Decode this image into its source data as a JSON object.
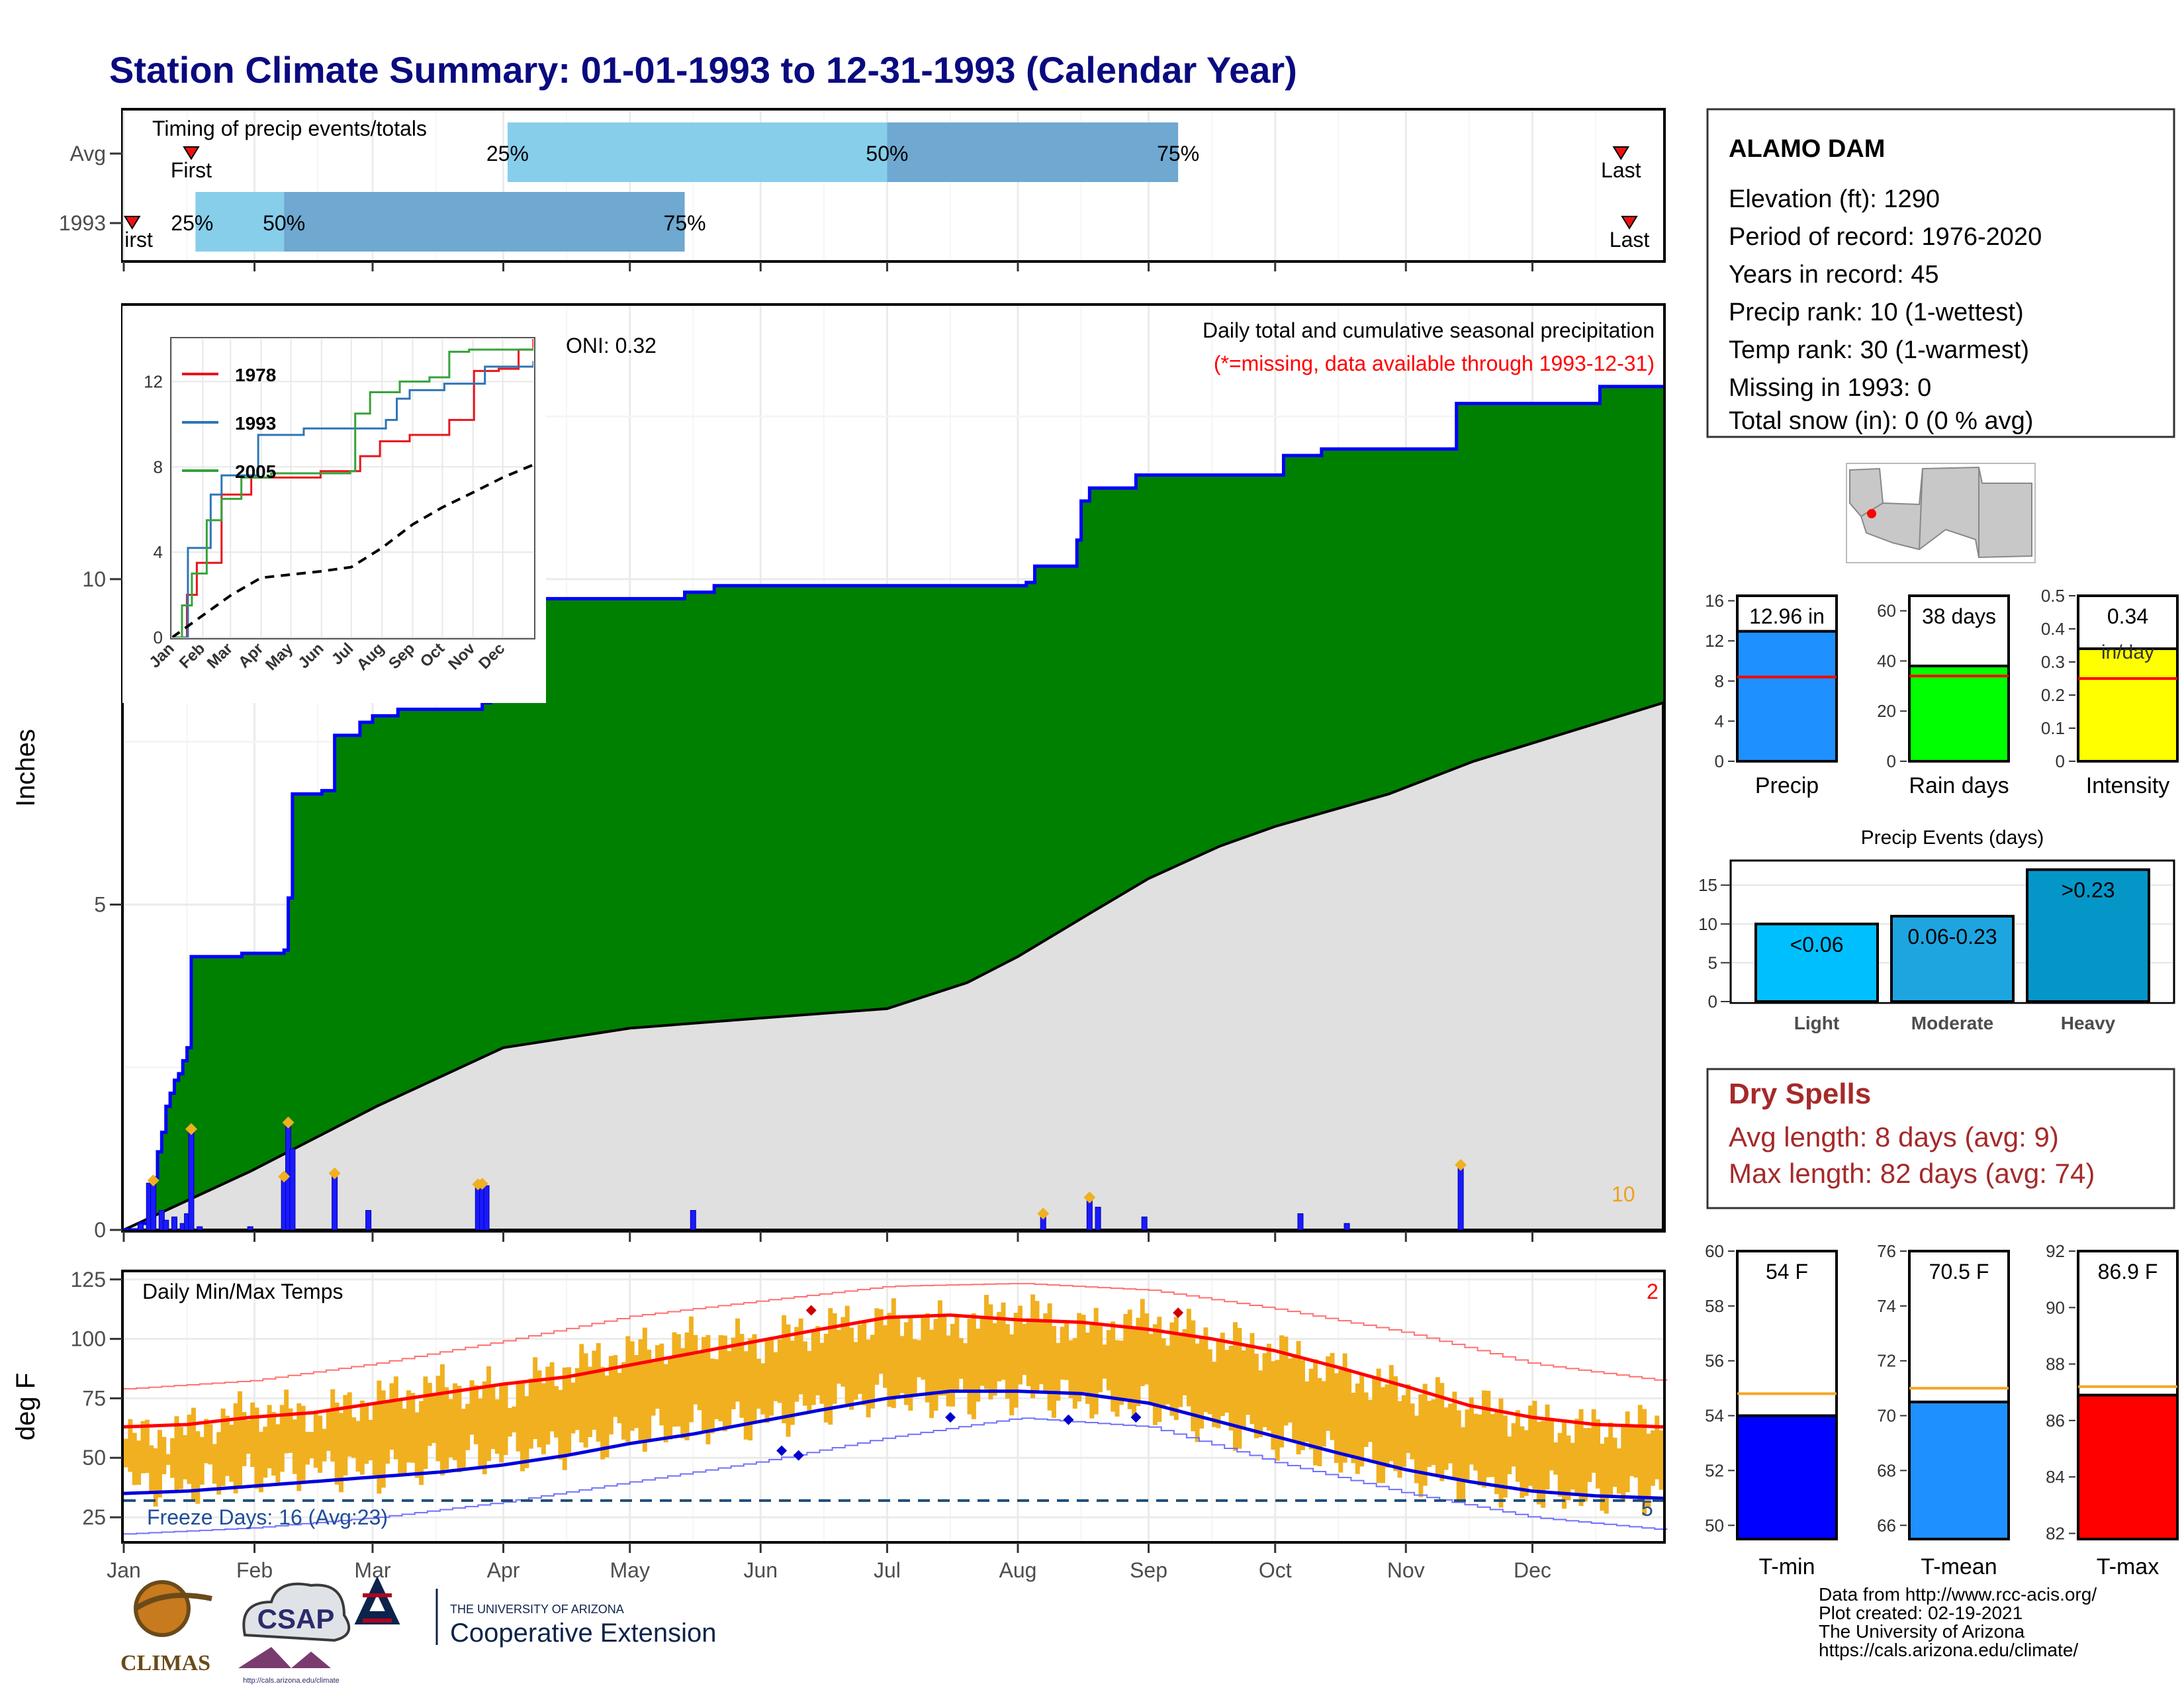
{
  "title": "Station Climate Summary: 01-01-1993 to 12-31-1993 (Calendar Year)",
  "colors": {
    "title": "#0a0a80",
    "green": "#008000",
    "gray_fill": "#e0e0e0",
    "blue_line": "#0000ff",
    "orange": "#f0b020",
    "red": "#ff0000",
    "dry_red": "#a52a2a",
    "light_blue": "#87ceeb",
    "mid_blue": "#6fa8d0"
  },
  "timing": {
    "title": "Timing of precip events/totals",
    "rows": [
      "Avg",
      "1993"
    ],
    "avg_bar": {
      "q25_day": 91,
      "q50_day": 181,
      "q75_day": 250
    },
    "avg_labels": {
      "q25": "25%",
      "q50": "50%",
      "q75": "75%"
    },
    "avg_markers": {
      "first_day": 16,
      "last_day": 355,
      "first": "First",
      "last": "Last"
    },
    "y1993_bar": {
      "q25_day": 17,
      "q50_day": 38,
      "q75_day": 133
    },
    "y1993_labels": {
      "q25": "25%",
      "q50": "50%",
      "q75": "75%"
    },
    "y1993_markers": {
      "first_day": 2,
      "last_day": 357,
      "first": "First",
      "last": "Last"
    }
  },
  "station": {
    "name": "ALAMO DAM",
    "lines": [
      "Elevation (ft): 1290",
      "Period of record: 1976-2020",
      "Years in record: 45",
      "Precip rank: 10 (1-wettest)",
      "Temp rank: 30 (1-warmest)",
      "Missing in 1993: 0",
      "Total snow (in): 0 (0 % avg)"
    ]
  },
  "precip_panel": {
    "ylabel": "Inches",
    "oni": "ONI: 0.32",
    "title_line1": "Daily total and cumulative seasonal precipitation",
    "title_line2": "(*=missing, data available through 1993-12-31)",
    "rank_label": "10",
    "ylim": [
      0,
      14.2
    ],
    "yticks": [
      0,
      5,
      10
    ],
    "months": [
      "Jan",
      "Feb",
      "Mar",
      "Apr",
      "May",
      "Jun",
      "Jul",
      "Aug",
      "Sep",
      "Oct",
      "Nov",
      "Dec"
    ],
    "cum_1993_steps": [
      [
        0,
        0
      ],
      [
        4,
        0.1
      ],
      [
        6,
        0.5
      ],
      [
        7,
        0.8
      ],
      [
        8,
        1.2
      ],
      [
        9,
        1.5
      ],
      [
        10,
        1.9
      ],
      [
        11,
        2.1
      ],
      [
        12,
        2.3
      ],
      [
        13,
        2.4
      ],
      [
        14,
        2.6
      ],
      [
        15,
        2.8
      ],
      [
        16,
        4.2
      ],
      [
        28,
        4.25
      ],
      [
        38,
        4.3
      ],
      [
        39,
        5.1
      ],
      [
        40,
        6.7
      ],
      [
        47,
        6.75
      ],
      [
        50,
        7.6
      ],
      [
        56,
        7.8
      ],
      [
        59,
        7.9
      ],
      [
        65,
        8.0
      ],
      [
        85,
        8.1
      ],
      [
        87,
        9.5
      ],
      [
        89,
        9.7
      ],
      [
        133,
        9.8
      ],
      [
        140,
        9.9
      ],
      [
        214,
        9.95
      ],
      [
        216,
        10.2
      ],
      [
        226,
        10.6
      ],
      [
        227,
        11.2
      ],
      [
        229,
        11.4
      ],
      [
        240,
        11.6
      ],
      [
        270,
        11.6
      ],
      [
        275,
        11.9
      ],
      [
        284,
        12.0
      ],
      [
        316,
        12.7
      ],
      [
        350,
        12.96
      ],
      [
        365,
        12.96
      ]
    ],
    "avg_cum": [
      [
        0,
        0
      ],
      [
        30,
        0.9
      ],
      [
        60,
        1.9
      ],
      [
        90,
        2.8
      ],
      [
        120,
        3.1
      ],
      [
        150,
        3.25
      ],
      [
        181,
        3.4
      ],
      [
        200,
        3.8
      ],
      [
        212,
        4.2
      ],
      [
        230,
        4.9
      ],
      [
        243,
        5.4
      ],
      [
        260,
        5.9
      ],
      [
        273,
        6.2
      ],
      [
        300,
        6.7
      ],
      [
        320,
        7.2
      ],
      [
        340,
        7.6
      ],
      [
        365,
        8.1
      ]
    ],
    "daily": [
      [
        4,
        0.1
      ],
      [
        6,
        0.72
      ],
      [
        7,
        0.8
      ],
      [
        9,
        0.3
      ],
      [
        10,
        0.15
      ],
      [
        12,
        0.2
      ],
      [
        14,
        0.1
      ],
      [
        15,
        0.25
      ],
      [
        16,
        1.55
      ],
      [
        18,
        0.05
      ],
      [
        30,
        0.05
      ],
      [
        38,
        0.82
      ],
      [
        39,
        1.65
      ],
      [
        40,
        1.25
      ],
      [
        50,
        0.87
      ],
      [
        58,
        0.3
      ],
      [
        84,
        0.7
      ],
      [
        85,
        0.71
      ],
      [
        86,
        0.68
      ],
      [
        135,
        0.3
      ],
      [
        218,
        0.25
      ],
      [
        229,
        0.5
      ],
      [
        231,
        0.35
      ],
      [
        242,
        0.2
      ],
      [
        279,
        0.25
      ],
      [
        290,
        0.1
      ],
      [
        317,
        1.0
      ]
    ],
    "orange_markers": [
      [
        7,
        0.76
      ],
      [
        16,
        1.55
      ],
      [
        38,
        0.82
      ],
      [
        39,
        1.65
      ],
      [
        50,
        0.87
      ],
      [
        84,
        0.7
      ],
      [
        85,
        0.71
      ],
      [
        218,
        0.25
      ],
      [
        229,
        0.5
      ],
      [
        317,
        1.0
      ]
    ]
  },
  "inset": {
    "ylim": [
      0,
      14
    ],
    "yticks": [
      0,
      4,
      8,
      12
    ],
    "legend": [
      "1978",
      "1993",
      "2005"
    ],
    "series": [
      {
        "name": "1978",
        "color": "#e8151b",
        "points": [
          [
            0,
            0
          ],
          [
            15,
            2
          ],
          [
            25,
            3.5
          ],
          [
            50,
            6.7
          ],
          [
            80,
            7.5
          ],
          [
            150,
            7.8
          ],
          [
            190,
            8.5
          ],
          [
            210,
            9.2
          ],
          [
            240,
            9.5
          ],
          [
            280,
            10.2
          ],
          [
            305,
            12.5
          ],
          [
            330,
            12.6
          ],
          [
            350,
            13.5
          ],
          [
            365,
            15.5
          ]
        ]
      },
      {
        "name": "1993",
        "color": "#2e75b6",
        "points": [
          [
            0,
            0
          ],
          [
            16,
            4.2
          ],
          [
            39,
            6.7
          ],
          [
            50,
            7.6
          ],
          [
            87,
            9.5
          ],
          [
            133,
            9.8
          ],
          [
            216,
            10.2
          ],
          [
            227,
            11.2
          ],
          [
            240,
            11.6
          ],
          [
            275,
            11.9
          ],
          [
            316,
            12.7
          ],
          [
            365,
            12.96
          ]
        ]
      },
      {
        "name": "2005",
        "color": "#35a33a",
        "points": [
          [
            0,
            0
          ],
          [
            10,
            1.5
          ],
          [
            20,
            3
          ],
          [
            35,
            5.5
          ],
          [
            50,
            6.5
          ],
          [
            70,
            7.5
          ],
          [
            100,
            7.7
          ],
          [
            180,
            7.8
          ],
          [
            185,
            10.5
          ],
          [
            200,
            11.5
          ],
          [
            230,
            12
          ],
          [
            260,
            12.2
          ],
          [
            280,
            13.4
          ],
          [
            300,
            13.5
          ],
          [
            365,
            13.6
          ]
        ]
      }
    ],
    "avg_dashed": [
      [
        0,
        0
      ],
      [
        30,
        1
      ],
      [
        60,
        2
      ],
      [
        90,
        2.8
      ],
      [
        150,
        3.1
      ],
      [
        181,
        3.3
      ],
      [
        212,
        4.2
      ],
      [
        243,
        5.3
      ],
      [
        273,
        6.1
      ],
      [
        304,
        6.8
      ],
      [
        334,
        7.5
      ],
      [
        365,
        8.1
      ]
    ]
  },
  "temp_panel": {
    "ylabel": "deg F",
    "title": "Daily Min/Max Temps",
    "freeze_label": "Freeze Days: 16 (Avg:23)",
    "top_right_label": "2",
    "bottom_right_label": "5",
    "ylim": [
      15,
      128
    ],
    "yticks": [
      25,
      50,
      75,
      100,
      125
    ],
    "freeze_line": 32,
    "months": [
      "Jan",
      "Feb",
      "Mar",
      "Apr",
      "May",
      "Jun",
      "Jul",
      "Aug",
      "Sep",
      "Oct",
      "Nov",
      "Dec"
    ],
    "avg_max_curve": [
      [
        0,
        63
      ],
      [
        15,
        64
      ],
      [
        30,
        67
      ],
      [
        45,
        69
      ],
      [
        60,
        73
      ],
      [
        75,
        77
      ],
      [
        90,
        81
      ],
      [
        105,
        84
      ],
      [
        120,
        89
      ],
      [
        135,
        94
      ],
      [
        150,
        99
      ],
      [
        165,
        104
      ],
      [
        181,
        109
      ],
      [
        196,
        110
      ],
      [
        212,
        108
      ],
      [
        227,
        107
      ],
      [
        243,
        104
      ],
      [
        258,
        100
      ],
      [
        273,
        95
      ],
      [
        288,
        88
      ],
      [
        304,
        80
      ],
      [
        319,
        72
      ],
      [
        334,
        67
      ],
      [
        349,
        64
      ],
      [
        365,
        63
      ]
    ],
    "avg_min_curve": [
      [
        0,
        35
      ],
      [
        15,
        36
      ],
      [
        30,
        38
      ],
      [
        45,
        40
      ],
      [
        60,
        42
      ],
      [
        75,
        44
      ],
      [
        90,
        47
      ],
      [
        105,
        51
      ],
      [
        120,
        56
      ],
      [
        135,
        60
      ],
      [
        150,
        65
      ],
      [
        165,
        70
      ],
      [
        181,
        75
      ],
      [
        196,
        78
      ],
      [
        212,
        78
      ],
      [
        227,
        77
      ],
      [
        243,
        73
      ],
      [
        258,
        66
      ],
      [
        273,
        59
      ],
      [
        288,
        52
      ],
      [
        304,
        45
      ],
      [
        319,
        40
      ],
      [
        334,
        36
      ],
      [
        349,
        34
      ],
      [
        365,
        33
      ]
    ],
    "record_max_curve": [
      [
        0,
        79
      ],
      [
        30,
        82
      ],
      [
        60,
        89
      ],
      [
        90,
        98
      ],
      [
        120,
        108
      ],
      [
        150,
        114
      ],
      [
        181,
        120
      ],
      [
        212,
        121
      ],
      [
        243,
        118
      ],
      [
        273,
        110
      ],
      [
        304,
        100
      ],
      [
        334,
        87
      ],
      [
        365,
        80
      ]
    ],
    "record_min_curve": [
      [
        0,
        18
      ],
      [
        30,
        20
      ],
      [
        60,
        24
      ],
      [
        90,
        30
      ],
      [
        120,
        38
      ],
      [
        150,
        46
      ],
      [
        181,
        56
      ],
      [
        212,
        64
      ],
      [
        243,
        60
      ],
      [
        273,
        45
      ],
      [
        304,
        32
      ],
      [
        334,
        22
      ],
      [
        365,
        17
      ]
    ],
    "daily_hi_curve": [
      [
        0,
        58
      ],
      [
        15,
        62
      ],
      [
        30,
        70
      ],
      [
        45,
        68
      ],
      [
        60,
        75
      ],
      [
        75,
        80
      ],
      [
        90,
        78
      ],
      [
        105,
        88
      ],
      [
        120,
        95
      ],
      [
        135,
        100
      ],
      [
        150,
        98
      ],
      [
        165,
        105
      ],
      [
        181,
        108
      ],
      [
        196,
        106
      ],
      [
        212,
        112
      ],
      [
        227,
        104
      ],
      [
        243,
        108
      ],
      [
        258,
        100
      ],
      [
        273,
        95
      ],
      [
        288,
        86
      ],
      [
        304,
        78
      ],
      [
        319,
        72
      ],
      [
        334,
        66
      ],
      [
        349,
        62
      ],
      [
        365,
        65
      ]
    ],
    "daily_lo_curve": [
      [
        0,
        40
      ],
      [
        15,
        38
      ],
      [
        30,
        42
      ],
      [
        45,
        46
      ],
      [
        60,
        44
      ],
      [
        75,
        48
      ],
      [
        90,
        52
      ],
      [
        105,
        55
      ],
      [
        120,
        60
      ],
      [
        135,
        63
      ],
      [
        150,
        66
      ],
      [
        165,
        72
      ],
      [
        181,
        76
      ],
      [
        196,
        74
      ],
      [
        212,
        78
      ],
      [
        227,
        74
      ],
      [
        243,
        72
      ],
      [
        258,
        64
      ],
      [
        273,
        58
      ],
      [
        288,
        50
      ],
      [
        304,
        44
      ],
      [
        319,
        40
      ],
      [
        334,
        36
      ],
      [
        349,
        34
      ],
      [
        365,
        36
      ]
    ],
    "record_hi_markers": [
      [
        163,
        112
      ],
      [
        250,
        111
      ]
    ],
    "record_lo_markers": [
      [
        156,
        53
      ],
      [
        160,
        51
      ],
      [
        196,
        67
      ],
      [
        224,
        66
      ],
      [
        240,
        67
      ]
    ]
  },
  "bars": {
    "precip": {
      "label": "Precip",
      "value": 12.96,
      "avg": 8.4,
      "value_label": "12.96 in",
      "ylim": [
        0,
        16.5
      ],
      "yticks": [
        0,
        4,
        8,
        12,
        16
      ]
    },
    "raindays": {
      "label": "Rain days",
      "value": 38,
      "avg": 34,
      "value_label": "38 days",
      "ylim": [
        0,
        66
      ],
      "yticks": [
        0,
        20,
        40,
        60
      ]
    },
    "intensity": {
      "label": "Intensity",
      "value": 0.34,
      "avg": 0.25,
      "value_label": "0.34",
      "unit_label": "in/day",
      "ylim": [
        0,
        0.5
      ],
      "yticks": [
        0.0,
        0.1,
        0.2,
        0.3,
        0.4,
        0.5
      ]
    }
  },
  "events": {
    "title": "Precip Events (days)",
    "ylim": [
      0,
      18
    ],
    "yticks": [
      0,
      5,
      10,
      15
    ],
    "categories": [
      "Light",
      "Moderate",
      "Heavy"
    ],
    "values": [
      10,
      11,
      17
    ],
    "value_labels": [
      "<0.06",
      "0.06-0.23",
      ">0.23"
    ],
    "colors": [
      "#00bfff",
      "#1ea5e0",
      "#0596c8"
    ]
  },
  "dry_spells": {
    "title": "Dry Spells",
    "lines": [
      "Avg length: 8 days (avg: 9)",
      "Max length: 82 days (avg: 74)"
    ]
  },
  "temp_bars": {
    "tmin": {
      "label": "T-min",
      "value": 54,
      "avg": 54.8,
      "value_label": "54 F",
      "ylim": [
        49.5,
        60
      ],
      "yticks": [
        50,
        52,
        54,
        56,
        58,
        60
      ],
      "color": "#0000ff"
    },
    "tmean": {
      "label": "T-mean",
      "value": 70.5,
      "avg": 71,
      "value_label": "70.5 F",
      "ylim": [
        65.5,
        76
      ],
      "yticks": [
        66,
        68,
        70,
        72,
        74,
        76
      ],
      "color": "#1e90ff"
    },
    "tmax": {
      "label": "T-max",
      "value": 86.9,
      "avg": 87.2,
      "value_label": "86.9 F",
      "ylim": [
        81.8,
        92
      ],
      "yticks": [
        82,
        84,
        86,
        88,
        90,
        92
      ],
      "color": "#ff0000"
    }
  },
  "footer": {
    "lines": [
      "Data from http://www.rcc-acis.org/",
      "Plot created: 02-19-2021",
      "The University of Arizona",
      "https://cals.arizona.edu/climate/"
    ],
    "logo1": "CLIMAS",
    "logo2": "CSAP",
    "logo2_url": "http://cals.arizona.edu/climate",
    "logo3_top": "THE UNIVERSITY OF ARIZONA",
    "logo3_bottom": "Cooperative Extension"
  }
}
